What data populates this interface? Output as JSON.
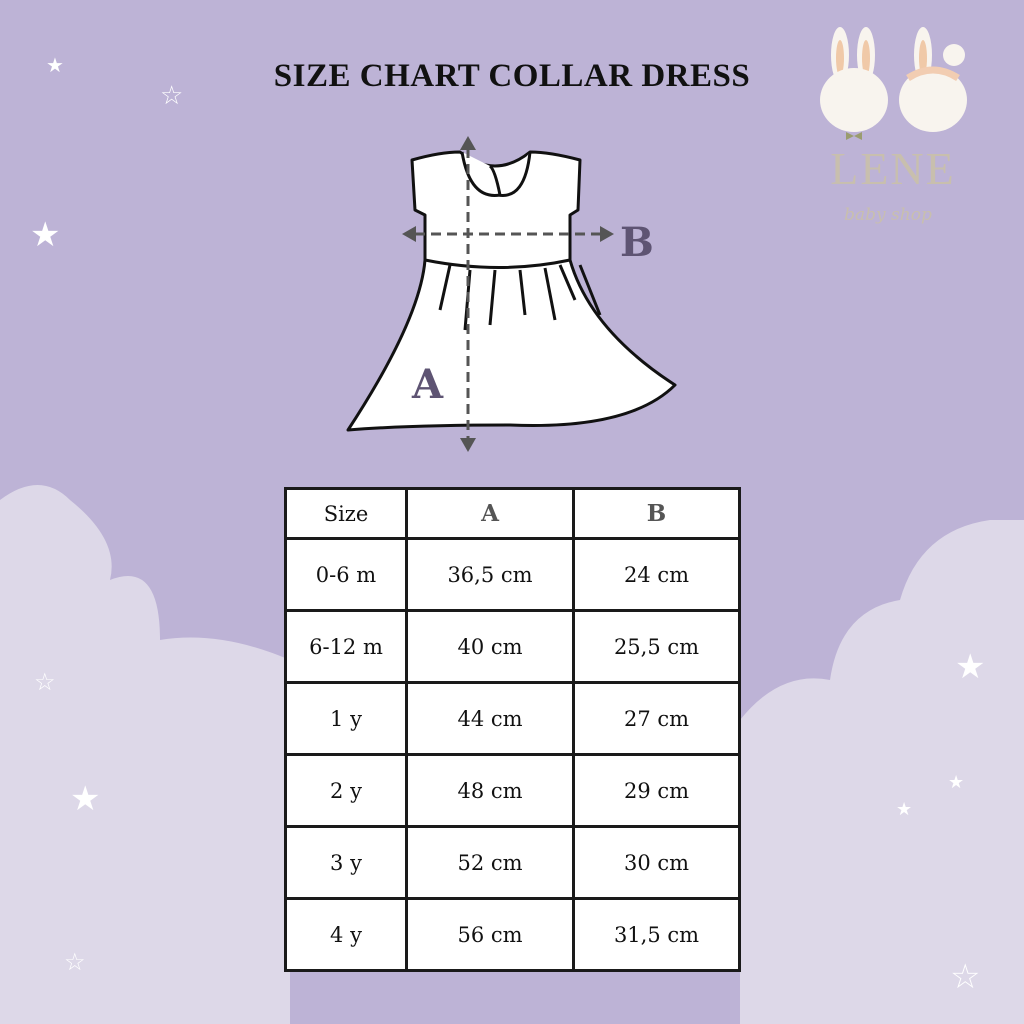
{
  "title": "SIZE CHART COLLAR DRESS",
  "logo": {
    "name": "LENE",
    "subtitle": "baby shop"
  },
  "diagram": {
    "label_a": "A",
    "label_b": "B"
  },
  "table": {
    "headers": [
      "Size",
      "A",
      "B"
    ],
    "rows": [
      [
        "0-6 m",
        "36,5 cm",
        "24 cm"
      ],
      [
        "6-12 m",
        "40 cm",
        "25,5 cm"
      ],
      [
        "1 y",
        "44 cm",
        "27 cm"
      ],
      [
        "2 y",
        "48 cm",
        "29 cm"
      ],
      [
        "3 y",
        "52 cm",
        "30 cm"
      ],
      [
        "4 y",
        "56 cm",
        "31,5 cm"
      ]
    ]
  },
  "colors": {
    "background": "#bdb3d6",
    "clouds": "#ddd8e8",
    "label": "#5e5473"
  }
}
